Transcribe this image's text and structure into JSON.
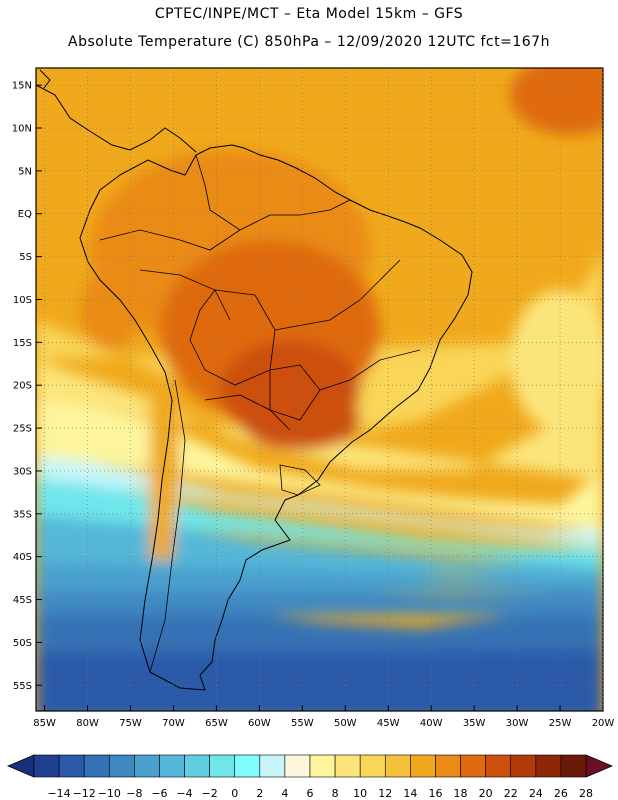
{
  "header": {
    "line1": "CPTEC/INPE/MCT –   Eta Model 15km – GFS",
    "line2": "Absolute Temperature (C) 850hPa – 12/09/2020 12UTC fct=167h"
  },
  "map": {
    "lat_labels": [
      "15N",
      "10N",
      "5N",
      "EQ",
      "5S",
      "10S",
      "15S",
      "20S",
      "25S",
      "30S",
      "35S",
      "40S",
      "45S",
      "50S",
      "55S"
    ],
    "lon_labels": [
      "85W",
      "80W",
      "75W",
      "70W",
      "65W",
      "60W",
      "55W",
      "50W",
      "45W",
      "40W",
      "35W",
      "30W",
      "25W",
      "20W"
    ],
    "lat_range": [
      17,
      -58
    ],
    "lon_range": [
      -86,
      -20
    ]
  },
  "colorbar": {
    "labels": [
      "-14",
      "-12",
      "-10",
      "-8",
      "-6",
      "-4",
      "-2",
      "0",
      "2",
      "4",
      "6",
      "8",
      "10",
      "12",
      "14",
      "16",
      "18",
      "20",
      "22",
      "24",
      "26",
      "28"
    ],
    "colors": [
      "#1f3f8f",
      "#2a5aa8",
      "#3472b5",
      "#3f88c2",
      "#4aa0cd",
      "#55b8d8",
      "#5fcfe0",
      "#6ee6ec",
      "#7ffcfd",
      "#c8f6f8",
      "#fdf6dc",
      "#fdf59e",
      "#fbe57a",
      "#f9d558",
      "#f4c13a",
      "#f0a91c",
      "#ea8b16",
      "#df6a10",
      "#cc4f0c",
      "#b2390a",
      "#8e2608",
      "#6b1a0a"
    ],
    "low_color": "#1a2f7a",
    "high_color": "#6a0f25"
  }
}
